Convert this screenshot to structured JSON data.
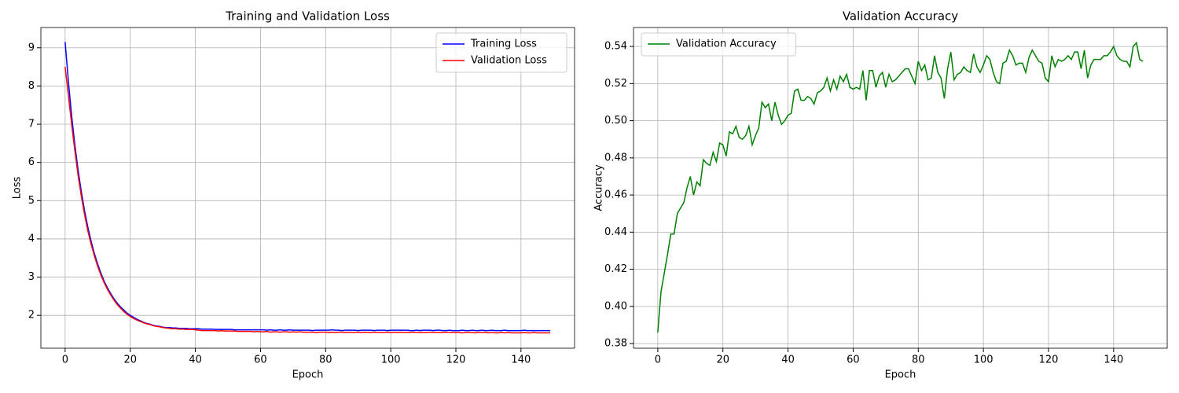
{
  "chart_data": [
    {
      "type": "line",
      "title": "Training and Validation Loss",
      "x_label": "Epoch",
      "y_label": "Loss",
      "x": [
        0,
        1,
        2,
        3,
        4,
        5,
        6,
        7,
        8,
        9,
        10,
        11,
        12,
        13,
        14,
        15,
        16,
        17,
        18,
        19,
        20,
        21,
        22,
        23,
        24,
        25,
        26,
        27,
        28,
        29,
        30,
        31,
        32,
        33,
        34,
        35,
        36,
        37,
        38,
        39,
        40,
        41,
        42,
        43,
        44,
        45,
        46,
        47,
        48,
        49,
        50,
        51,
        52,
        53,
        54,
        55,
        56,
        57,
        58,
        59,
        60,
        61,
        62,
        63,
        64,
        65,
        66,
        67,
        68,
        69,
        70,
        71,
        72,
        73,
        74,
        75,
        76,
        77,
        78,
        79,
        80,
        81,
        82,
        83,
        84,
        85,
        86,
        87,
        88,
        89,
        90,
        91,
        92,
        93,
        94,
        95,
        96,
        97,
        98,
        99,
        100,
        101,
        102,
        103,
        104,
        105,
        106,
        107,
        108,
        109,
        110,
        111,
        112,
        113,
        114,
        115,
        116,
        117,
        118,
        119,
        120,
        121,
        122,
        123,
        124,
        125,
        126,
        127,
        128,
        129,
        130,
        131,
        132,
        133,
        134,
        135,
        136,
        137,
        138,
        139,
        140,
        141,
        142,
        143,
        144,
        145,
        146,
        147,
        148,
        149
      ],
      "series": [
        {
          "name": "Training Loss",
          "color": "#0000ff",
          "values": [
            9.15,
            8.12,
            7.22,
            6.45,
            5.79,
            5.22,
            4.72,
            4.3,
            3.93,
            3.61,
            3.34,
            3.1,
            2.89,
            2.72,
            2.57,
            2.43,
            2.32,
            2.22,
            2.14,
            2.06,
            2.0,
            1.95,
            1.9,
            1.86,
            1.82,
            1.79,
            1.77,
            1.74,
            1.72,
            1.71,
            1.69,
            1.68,
            1.68,
            1.67,
            1.67,
            1.66,
            1.66,
            1.66,
            1.65,
            1.65,
            1.65,
            1.65,
            1.64,
            1.64,
            1.64,
            1.64,
            1.63,
            1.63,
            1.63,
            1.63,
            1.63,
            1.63,
            1.62,
            1.62,
            1.62,
            1.62,
            1.62,
            1.62,
            1.62,
            1.62,
            1.62,
            1.62,
            1.61,
            1.62,
            1.61,
            1.61,
            1.62,
            1.61,
            1.61,
            1.62,
            1.61,
            1.61,
            1.61,
            1.61,
            1.61,
            1.61,
            1.6,
            1.61,
            1.61,
            1.61,
            1.61,
            1.61,
            1.62,
            1.61,
            1.61,
            1.6,
            1.61,
            1.61,
            1.61,
            1.61,
            1.6,
            1.61,
            1.61,
            1.61,
            1.61,
            1.6,
            1.61,
            1.61,
            1.61,
            1.6,
            1.61,
            1.61,
            1.61,
            1.61,
            1.61,
            1.61,
            1.6,
            1.6,
            1.61,
            1.6,
            1.61,
            1.61,
            1.61,
            1.6,
            1.61,
            1.61,
            1.6,
            1.6,
            1.61,
            1.6,
            1.6,
            1.6,
            1.61,
            1.6,
            1.6,
            1.61,
            1.6,
            1.6,
            1.61,
            1.6,
            1.6,
            1.61,
            1.6,
            1.6,
            1.6,
            1.61,
            1.6,
            1.6,
            1.6,
            1.6,
            1.6,
            1.61,
            1.6,
            1.6,
            1.6,
            1.6,
            1.6,
            1.6,
            1.6,
            1.6
          ]
        },
        {
          "name": "Validation Loss",
          "color": "#ff0000",
          "values": [
            8.5,
            7.75,
            7.0,
            6.3,
            5.65,
            5.1,
            4.62,
            4.2,
            3.85,
            3.55,
            3.28,
            3.05,
            2.85,
            2.68,
            2.53,
            2.4,
            2.28,
            2.19,
            2.1,
            2.03,
            1.97,
            1.92,
            1.88,
            1.84,
            1.81,
            1.78,
            1.76,
            1.73,
            1.71,
            1.7,
            1.68,
            1.67,
            1.66,
            1.65,
            1.65,
            1.64,
            1.64,
            1.63,
            1.63,
            1.63,
            1.62,
            1.61,
            1.6,
            1.6,
            1.6,
            1.6,
            1.6,
            1.59,
            1.6,
            1.59,
            1.59,
            1.59,
            1.59,
            1.58,
            1.58,
            1.58,
            1.58,
            1.58,
            1.57,
            1.58,
            1.57,
            1.57,
            1.58,
            1.56,
            1.57,
            1.57,
            1.56,
            1.57,
            1.57,
            1.56,
            1.57,
            1.56,
            1.57,
            1.56,
            1.56,
            1.56,
            1.56,
            1.55,
            1.56,
            1.56,
            1.56,
            1.55,
            1.56,
            1.55,
            1.56,
            1.56,
            1.55,
            1.56,
            1.55,
            1.55,
            1.56,
            1.55,
            1.56,
            1.55,
            1.55,
            1.56,
            1.55,
            1.55,
            1.55,
            1.56,
            1.55,
            1.56,
            1.55,
            1.56,
            1.55,
            1.55,
            1.55,
            1.56,
            1.55,
            1.55,
            1.55,
            1.55,
            1.56,
            1.55,
            1.55,
            1.55,
            1.55,
            1.56,
            1.55,
            1.55,
            1.55,
            1.55,
            1.54,
            1.55,
            1.55,
            1.55,
            1.54,
            1.55,
            1.55,
            1.55,
            1.54,
            1.55,
            1.54,
            1.54,
            1.55,
            1.54,
            1.55,
            1.54,
            1.54,
            1.54,
            1.54,
            1.55,
            1.54,
            1.54,
            1.55,
            1.54,
            1.54,
            1.54,
            1.54,
            1.54
          ]
        }
      ],
      "xlim": [
        -7.45,
        156.45
      ],
      "xticks": [
        0,
        20,
        40,
        60,
        80,
        100,
        120,
        140
      ],
      "ylim": [
        1.14,
        9.53
      ],
      "yticks": [
        2,
        3,
        4,
        5,
        6,
        7,
        8,
        9
      ],
      "grid": true,
      "legend": "upper right"
    },
    {
      "type": "line",
      "title": "Validation Accuracy",
      "x_label": "Epoch",
      "y_label": "Accuracy",
      "x": [
        0,
        1,
        2,
        3,
        4,
        5,
        6,
        7,
        8,
        9,
        10,
        11,
        12,
        13,
        14,
        15,
        16,
        17,
        18,
        19,
        20,
        21,
        22,
        23,
        24,
        25,
        26,
        27,
        28,
        29,
        30,
        31,
        32,
        33,
        34,
        35,
        36,
        37,
        38,
        39,
        40,
        41,
        42,
        43,
        44,
        45,
        46,
        47,
        48,
        49,
        50,
        51,
        52,
        53,
        54,
        55,
        56,
        57,
        58,
        59,
        60,
        61,
        62,
        63,
        64,
        65,
        66,
        67,
        68,
        69,
        70,
        71,
        72,
        73,
        74,
        75,
        76,
        77,
        78,
        79,
        80,
        81,
        82,
        83,
        84,
        85,
        86,
        87,
        88,
        89,
        90,
        91,
        92,
        93,
        94,
        95,
        96,
        97,
        98,
        99,
        100,
        101,
        102,
        103,
        104,
        105,
        106,
        107,
        108,
        109,
        110,
        111,
        112,
        113,
        114,
        115,
        116,
        117,
        118,
        119,
        120,
        121,
        122,
        123,
        124,
        125,
        126,
        127,
        128,
        129,
        130,
        131,
        132,
        133,
        134,
        135,
        136,
        137,
        138,
        139,
        140,
        141,
        142,
        143,
        144,
        145,
        146,
        147,
        148,
        149
      ],
      "series": [
        {
          "name": "Validation Accuracy",
          "color": "#008000",
          "values": [
            0.386,
            0.408,
            0.418,
            0.428,
            0.439,
            0.439,
            0.45,
            0.453,
            0.456,
            0.464,
            0.47,
            0.46,
            0.467,
            0.465,
            0.479,
            0.477,
            0.476,
            0.483,
            0.478,
            0.488,
            0.487,
            0.481,
            0.494,
            0.493,
            0.497,
            0.491,
            0.49,
            0.492,
            0.497,
            0.487,
            0.492,
            0.496,
            0.51,
            0.507,
            0.509,
            0.5,
            0.51,
            0.503,
            0.498,
            0.5,
            0.503,
            0.504,
            0.516,
            0.517,
            0.511,
            0.511,
            0.513,
            0.512,
            0.509,
            0.515,
            0.516,
            0.518,
            0.523,
            0.516,
            0.522,
            0.517,
            0.524,
            0.521,
            0.525,
            0.518,
            0.517,
            0.518,
            0.517,
            0.527,
            0.511,
            0.527,
            0.527,
            0.518,
            0.524,
            0.526,
            0.518,
            0.525,
            0.521,
            0.522,
            0.524,
            0.526,
            0.528,
            0.528,
            0.524,
            0.52,
            0.532,
            0.527,
            0.53,
            0.522,
            0.523,
            0.535,
            0.526,
            0.523,
            0.512,
            0.528,
            0.537,
            0.522,
            0.525,
            0.526,
            0.529,
            0.527,
            0.526,
            0.536,
            0.529,
            0.526,
            0.53,
            0.535,
            0.533,
            0.526,
            0.521,
            0.52,
            0.531,
            0.532,
            0.538,
            0.535,
            0.53,
            0.531,
            0.531,
            0.526,
            0.534,
            0.538,
            0.535,
            0.532,
            0.531,
            0.523,
            0.521,
            0.535,
            0.529,
            0.533,
            0.532,
            0.533,
            0.535,
            0.533,
            0.537,
            0.537,
            0.528,
            0.538,
            0.523,
            0.53,
            0.533,
            0.533,
            0.533,
            0.535,
            0.535,
            0.537,
            0.54,
            0.535,
            0.533,
            0.532,
            0.532,
            0.529,
            0.54,
            0.542,
            0.533,
            0.532
          ]
        }
      ],
      "xlim": [
        -7.45,
        156.45
      ],
      "xticks": [
        0,
        20,
        40,
        60,
        80,
        100,
        120,
        140
      ],
      "ylim": [
        0.3775,
        0.5502
      ],
      "yticks": [
        0.38,
        {
          "value": 0.4,
          "label": "0.40"
        },
        0.42,
        0.44,
        0.46,
        0.48,
        {
          "value": 0.5,
          "label": "0.50"
        },
        0.52,
        0.54
      ],
      "grid": true,
      "legend": "upper left"
    }
  ]
}
